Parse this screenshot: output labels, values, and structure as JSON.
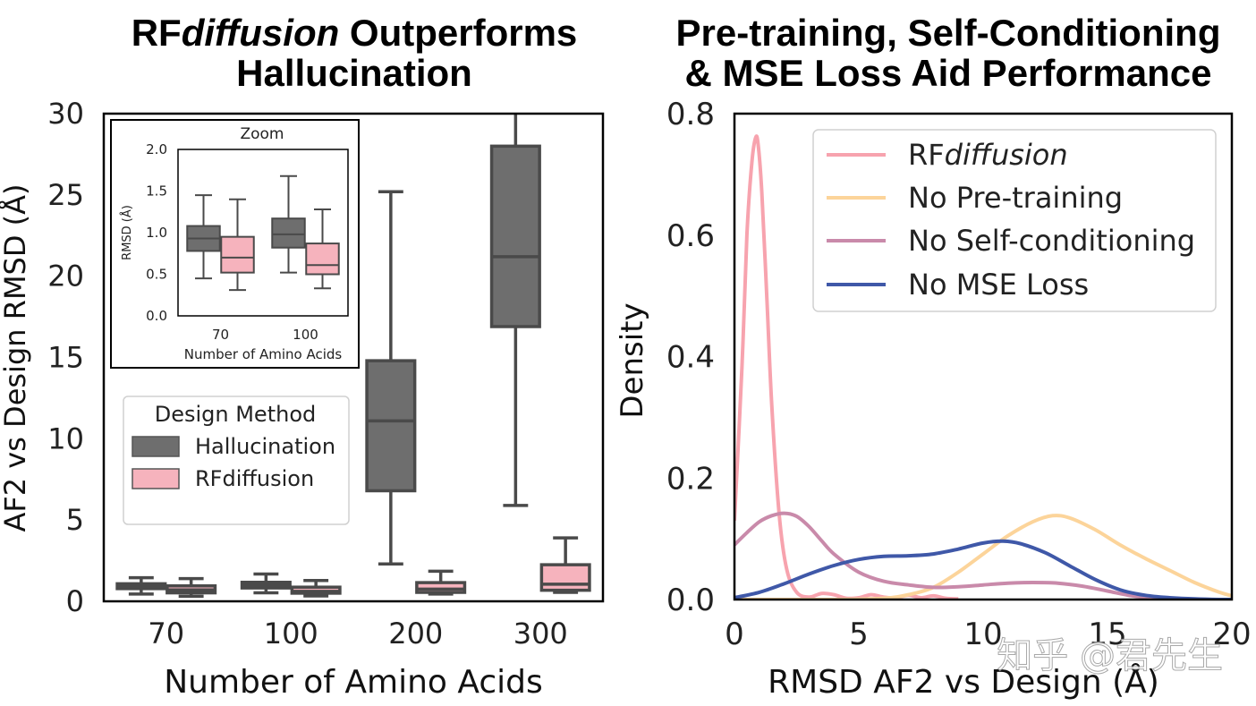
{
  "watermark": "知乎 @君先生",
  "chart_data": [
    {
      "type": "box",
      "title_prefix": "RF",
      "title_italic": "diffusion",
      "title_rest": " Outperforms",
      "title_line2": "Hallucination",
      "xlabel": "Number of Amino Acids",
      "ylabel": "AF2 vs Design RMSD (Å)",
      "ylim": [
        0,
        30
      ],
      "yticks": [
        0,
        5,
        10,
        15,
        20,
        25,
        30
      ],
      "categories": [
        "70",
        "100",
        "200",
        "300"
      ],
      "legend": {
        "title": "Design Method",
        "placement": "center-left",
        "entries": [
          {
            "label": "Hallucination",
            "color": "#6e6e6e"
          },
          {
            "label": "RFdiffusion",
            "color": "#f6b3bd"
          }
        ]
      },
      "series": [
        {
          "name": "Hallucination",
          "color": "#6e6e6e",
          "boxes": [
            {
              "whislo": 0.45,
              "q1": 0.78,
              "med": 0.93,
              "q3": 1.08,
              "whishi": 1.45
            },
            {
              "whislo": 0.52,
              "q1": 0.82,
              "med": 0.98,
              "q3": 1.17,
              "whishi": 1.68
            },
            {
              "whislo": 2.3,
              "q1": 6.8,
              "med": 11.1,
              "q3": 14.8,
              "whishi": 25.2
            },
            {
              "whislo": 5.9,
              "q1": 16.9,
              "med": 21.2,
              "q3": 28.0,
              "whishi": 30.0
            }
          ]
        },
        {
          "name": "RFdiffusion",
          "color": "#f6b3bd",
          "boxes": [
            {
              "whislo": 0.31,
              "q1": 0.52,
              "med": 0.7,
              "q3": 0.95,
              "whishi": 1.4
            },
            {
              "whislo": 0.33,
              "q1": 0.5,
              "med": 0.61,
              "q3": 0.87,
              "whishi": 1.28
            },
            {
              "whislo": 0.45,
              "q1": 0.55,
              "med": 0.75,
              "q3": 1.15,
              "whishi": 1.85
            },
            {
              "whislo": 0.55,
              "q1": 0.68,
              "med": 1.05,
              "q3": 2.25,
              "whishi": 3.9
            }
          ]
        }
      ],
      "inset": {
        "title": "Zoom",
        "xlabel": "Number of Amino Acids",
        "ylabel": "RMSD (Å)",
        "ylim": [
          0,
          2.0
        ],
        "yticks": [
          "0.0",
          "0.5",
          "1.0",
          "1.5",
          "2.0"
        ],
        "categories": [
          "70",
          "100"
        ]
      }
    },
    {
      "type": "line",
      "title_line1": "Pre-training, Self-Conditioning",
      "title_line2": "& MSE Loss Aid Performance",
      "xlabel": "RMSD AF2 vs Design (Å)",
      "ylabel": "Density",
      "xlim": [
        0,
        20
      ],
      "ylim": [
        0,
        0.8
      ],
      "xticks": [
        0,
        5,
        10,
        15,
        20
      ],
      "yticks": [
        "0.0",
        "0.2",
        "0.4",
        "0.6",
        "0.8"
      ],
      "legend": {
        "placement": "upper-right",
        "entries": [
          {
            "prefix": "RF",
            "italic": "diffusion",
            "label": "RFdiffusion",
            "color": "#f7a3ae"
          },
          {
            "label": "No Pre-training",
            "color": "#fcd49a"
          },
          {
            "label": "No Self-conditioning",
            "color": "#c98aaa"
          },
          {
            "label": "No MSE Loss",
            "color": "#3f58a8"
          }
        ]
      },
      "series": [
        {
          "name": "RFdiffusion",
          "color": "#f7a3ae",
          "x": [
            0,
            0.3,
            0.5,
            0.7,
            0.85,
            0.95,
            1.1,
            1.3,
            1.5,
            1.8,
            2.1,
            2.5,
            3.0,
            3.5,
            4.0,
            4.5,
            5.0,
            5.5,
            6.0,
            6.5,
            7.0,
            7.5,
            8.0,
            8.5,
            9.0
          ],
          "y": [
            0.13,
            0.38,
            0.6,
            0.72,
            0.76,
            0.75,
            0.67,
            0.5,
            0.32,
            0.14,
            0.05,
            0.012,
            0.004,
            0.01,
            0.008,
            0.002,
            0.003,
            0.008,
            0.004,
            0.003,
            0.007,
            0.003,
            0.006,
            0.002,
            0.001
          ]
        },
        {
          "name": "No Pre-training",
          "color": "#fcd49a",
          "x": [
            0,
            2,
            4,
            6,
            7,
            8,
            9,
            10,
            11,
            12,
            12.8,
            13.5,
            14.5,
            15.5,
            16.5,
            17.5,
            18.5,
            19.5,
            20
          ],
          "y": [
            0.0,
            0.0,
            0.0,
            0.002,
            0.008,
            0.02,
            0.045,
            0.075,
            0.105,
            0.128,
            0.138,
            0.134,
            0.115,
            0.09,
            0.068,
            0.048,
            0.028,
            0.012,
            0.006
          ]
        },
        {
          "name": "No Self-conditioning",
          "color": "#c98aaa",
          "x": [
            0,
            0.5,
            1.0,
            1.5,
            2.0,
            2.5,
            3.0,
            3.5,
            4.0,
            5.0,
            6.0,
            7.0,
            8.0,
            9.0,
            10.0,
            11.0,
            12.0,
            13.0,
            14.0,
            15.0,
            16.0,
            17.0,
            18.0,
            19.0,
            20.0
          ],
          "y": [
            0.09,
            0.11,
            0.128,
            0.138,
            0.142,
            0.137,
            0.12,
            0.097,
            0.075,
            0.045,
            0.03,
            0.024,
            0.02,
            0.021,
            0.024,
            0.027,
            0.028,
            0.027,
            0.022,
            0.014,
            0.006,
            0.002,
            0.001,
            0.0,
            0.0
          ]
        },
        {
          "name": "No MSE Loss",
          "color": "#3f58a8",
          "x": [
            0,
            1,
            2,
            3,
            4,
            5,
            6,
            7,
            8,
            9,
            10,
            10.8,
            11.5,
            12.5,
            13.5,
            14.5,
            15.5,
            16.5,
            17.5,
            18.5,
            19.5,
            20
          ],
          "y": [
            0.003,
            0.012,
            0.026,
            0.042,
            0.056,
            0.066,
            0.071,
            0.072,
            0.075,
            0.083,
            0.093,
            0.096,
            0.092,
            0.077,
            0.055,
            0.033,
            0.016,
            0.007,
            0.003,
            0.001,
            0.0,
            0.0
          ]
        }
      ]
    }
  ]
}
